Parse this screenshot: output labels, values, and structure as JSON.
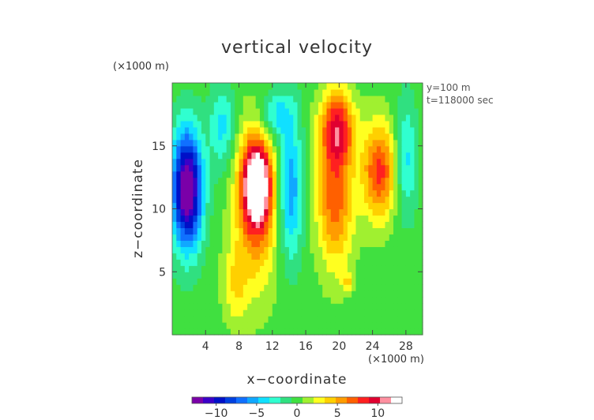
{
  "chart_data": {
    "type": "heatmap",
    "title": "vertical velocity",
    "xlabel": "x−coordinate",
    "ylabel": "z−coordinate",
    "x_unit": "(×1000 m)",
    "y_unit": "(×1000 m)",
    "annotations": [
      "y=100 m",
      "t=118000 sec"
    ],
    "xlim": [
      0,
      30
    ],
    "ylim": [
      0,
      20
    ],
    "x_ticks": [
      4,
      8,
      12,
      16,
      20,
      24,
      28
    ],
    "y_ticks": [
      5,
      10,
      15
    ],
    "colorbar": {
      "ticks": [
        -10,
        -5,
        0,
        5,
        10
      ],
      "range": [
        -13,
        13
      ],
      "colors": [
        "#7a00a8",
        "#3a00c8",
        "#0010c8",
        "#0040e0",
        "#1070ff",
        "#10a8ff",
        "#10e0ff",
        "#30ffd0",
        "#30e080",
        "#40e040",
        "#a0f030",
        "#ffff20",
        "#ffd000",
        "#ff9c00",
        "#ff6000",
        "#ff2020",
        "#e00030",
        "#ff90a0",
        "#ffffff"
      ]
    },
    "features": [
      {
        "type": "min",
        "x": 1.8,
        "z": 11.6,
        "value": -14,
        "sx": 1.8,
        "sz": 4.6
      },
      {
        "type": "min",
        "x": 6.0,
        "z": 16.5,
        "value": -4,
        "sx": 1.5,
        "sz": 3.2
      },
      {
        "type": "max",
        "x": 10.1,
        "z": 12.0,
        "value": 13,
        "sx": 1.6,
        "sz": 3.2
      },
      {
        "type": "max",
        "x": 10.0,
        "z": 10.0,
        "value": 6,
        "sx": 2.6,
        "sz": 6.5
      },
      {
        "type": "min",
        "x": 14.2,
        "z": 11.5,
        "value": -6,
        "sx": 1.4,
        "sz": 5.5
      },
      {
        "type": "min",
        "x": 12.5,
        "z": 17.5,
        "value": -4,
        "sx": 2.0,
        "sz": 2.0
      },
      {
        "type": "max",
        "x": 19.8,
        "z": 16.5,
        "value": 8,
        "sx": 2.0,
        "sz": 2.8
      },
      {
        "type": "max",
        "x": 19.5,
        "z": 11.0,
        "value": 7,
        "sx": 2.2,
        "sz": 5.5
      },
      {
        "type": "max",
        "x": 24.8,
        "z": 13.0,
        "value": 8,
        "sx": 2.0,
        "sz": 3.8
      },
      {
        "type": "min",
        "x": 28.0,
        "z": 14.0,
        "value": -4,
        "sx": 1.3,
        "sz": 4.5
      },
      {
        "type": "max",
        "x": 7.5,
        "z": 4.0,
        "value": 3,
        "sx": 1.5,
        "sz": 3.0
      },
      {
        "type": "max",
        "x": 21.0,
        "z": 4.2,
        "value": 3,
        "sx": 0.8,
        "sz": 0.8
      }
    ]
  }
}
